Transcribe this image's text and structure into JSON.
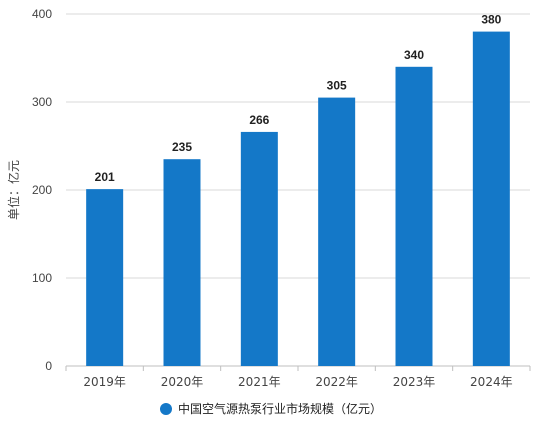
{
  "chart_data": {
    "type": "bar",
    "categories": [
      "2019年",
      "2020年",
      "2021年",
      "2022年",
      "2023年",
      "2024年"
    ],
    "series": [
      {
        "name": "中国空气源热泵行业市场规模（亿元）",
        "values": [
          201,
          235,
          266,
          305,
          340,
          380
        ]
      }
    ],
    "ylabel": "单位：亿元",
    "xlabel": "",
    "title": "",
    "ylim": [
      0,
      400
    ],
    "yticks": [
      0,
      100,
      200,
      300,
      400
    ],
    "grid": true,
    "legend_position": "bottom-center",
    "colors": {
      "bar": "#1478C8",
      "grid": "#d9d9d9",
      "axis": "#bfbfbf",
      "text": "#444444",
      "label": "#222222"
    }
  }
}
